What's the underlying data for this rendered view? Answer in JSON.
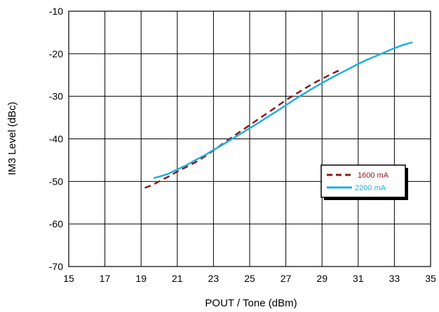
{
  "chart_data": {
    "type": "line",
    "xlabel": "POUT / Tone (dBm)",
    "ylabel": "IM3 Level (dBc)",
    "xlim": [
      15,
      35
    ],
    "ylim": [
      -70,
      -10
    ],
    "xticks": [
      15,
      17,
      19,
      21,
      23,
      25,
      27,
      29,
      31,
      33,
      35
    ],
    "yticks": [
      -70,
      -60,
      -50,
      -40,
      -30,
      -20,
      -10
    ],
    "x_tick_labels": [
      "15",
      "17",
      "19",
      "21",
      "23",
      "25",
      "27",
      "29",
      "31",
      "33",
      "35"
    ],
    "y_tick_labels": [
      "-70",
      "-60",
      "-50",
      "-40",
      "-30",
      "-20",
      "-10"
    ],
    "grid": true,
    "legend_position": "lower-right",
    "series": [
      {
        "name": "1600 mA",
        "color": "#8b1a1a",
        "style": "dashed",
        "x": [
          19.2,
          19.6,
          20.0,
          20.5,
          21.0,
          21.5,
          22.0,
          22.5,
          23.0,
          23.5,
          24.0,
          24.5,
          25.0,
          25.5,
          26.0,
          26.5,
          27.0,
          27.5,
          28.0,
          28.5,
          29.0,
          29.5,
          30.0
        ],
        "y": [
          -51.5,
          -50.9,
          -50.0,
          -48.9,
          -47.7,
          -46.6,
          -45.5,
          -44.2,
          -42.7,
          -41.2,
          -39.7,
          -38.2,
          -36.8,
          -35.3,
          -33.9,
          -32.4,
          -30.9,
          -29.6,
          -28.3,
          -27.0,
          -25.9,
          -24.8,
          -23.8
        ]
      },
      {
        "name": "2200 mA",
        "color": "#1fb0e0",
        "style": "solid",
        "x": [
          19.7,
          20.0,
          20.5,
          21.0,
          21.5,
          22.0,
          22.5,
          23.0,
          23.5,
          24.0,
          24.5,
          25.0,
          25.5,
          26.0,
          26.5,
          27.0,
          27.5,
          28.0,
          28.5,
          29.0,
          29.5,
          30.0,
          30.5,
          31.0,
          31.5,
          32.0,
          32.5,
          33.0,
          33.5,
          34.0
        ],
        "y": [
          -49.2,
          -48.9,
          -48.2,
          -47.2,
          -46.2,
          -45.0,
          -43.9,
          -42.6,
          -41.4,
          -40.1,
          -38.8,
          -37.5,
          -36.2,
          -34.8,
          -33.5,
          -32.1,
          -30.7,
          -29.4,
          -28.1,
          -26.9,
          -25.7,
          -24.6,
          -23.5,
          -22.4,
          -21.4,
          -20.5,
          -19.6,
          -18.7,
          -17.9,
          -17.3
        ]
      }
    ]
  }
}
